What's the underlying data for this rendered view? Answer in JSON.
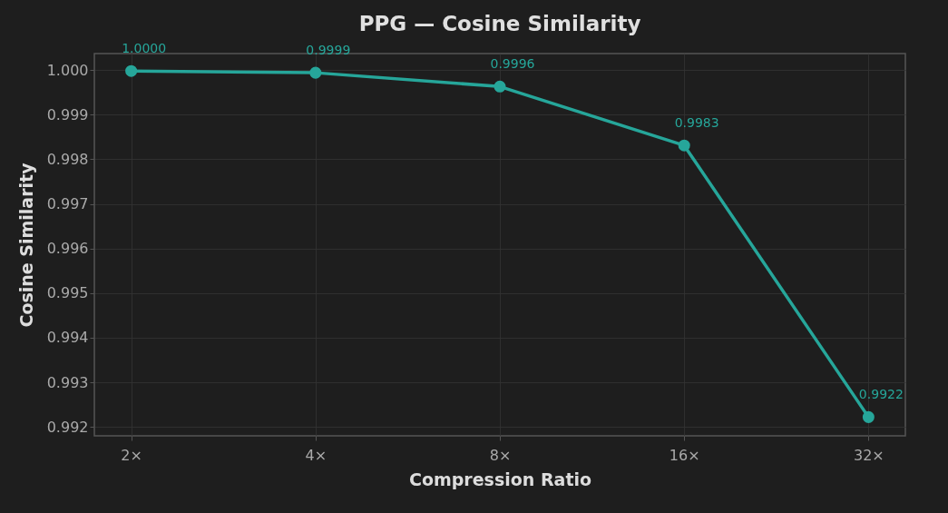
{
  "chart_data": {
    "type": "line",
    "title": "PPG — Cosine Similarity",
    "xlabel": "Compression Ratio",
    "ylabel": "Cosine Similarity",
    "categories": [
      "2×",
      "4×",
      "8×",
      "16×",
      "32×"
    ],
    "series": [
      {
        "color": "#26a69a",
        "values": [
          0.99998,
          0.99994,
          0.99963,
          0.99831,
          0.99222
        ],
        "value_labels": [
          "1.0000",
          "0.9999",
          "0.9996",
          "0.9983",
          "0.9922"
        ]
      }
    ],
    "ylim": [
      0.9918,
      1.00037
    ],
    "yticks": [
      0.992,
      0.993,
      0.994,
      0.995,
      0.996,
      0.997,
      0.998,
      0.999,
      {
        "value": 1,
        "label": "1.000"
      }
    ],
    "grid": true,
    "marker": "circle",
    "line_style": "solid"
  }
}
